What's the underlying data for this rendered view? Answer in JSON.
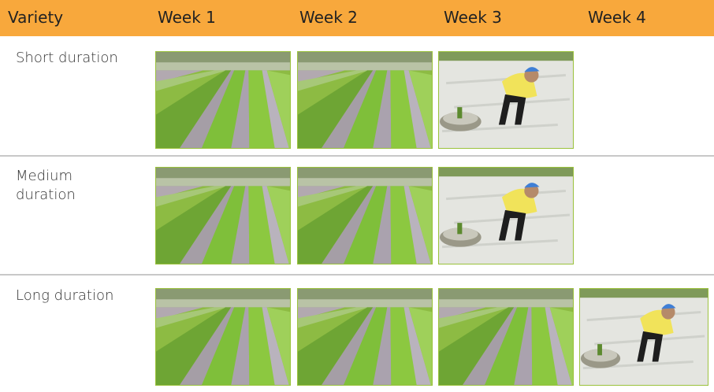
{
  "table": {
    "header": [
      "Variety",
      "Week 1",
      "Week 2",
      "Week 3",
      "Week 4"
    ],
    "rows": [
      [
        "Short duration"
      ],
      [
        "Medium duration"
      ],
      [
        "Long duration"
      ]
    ]
  }
}
